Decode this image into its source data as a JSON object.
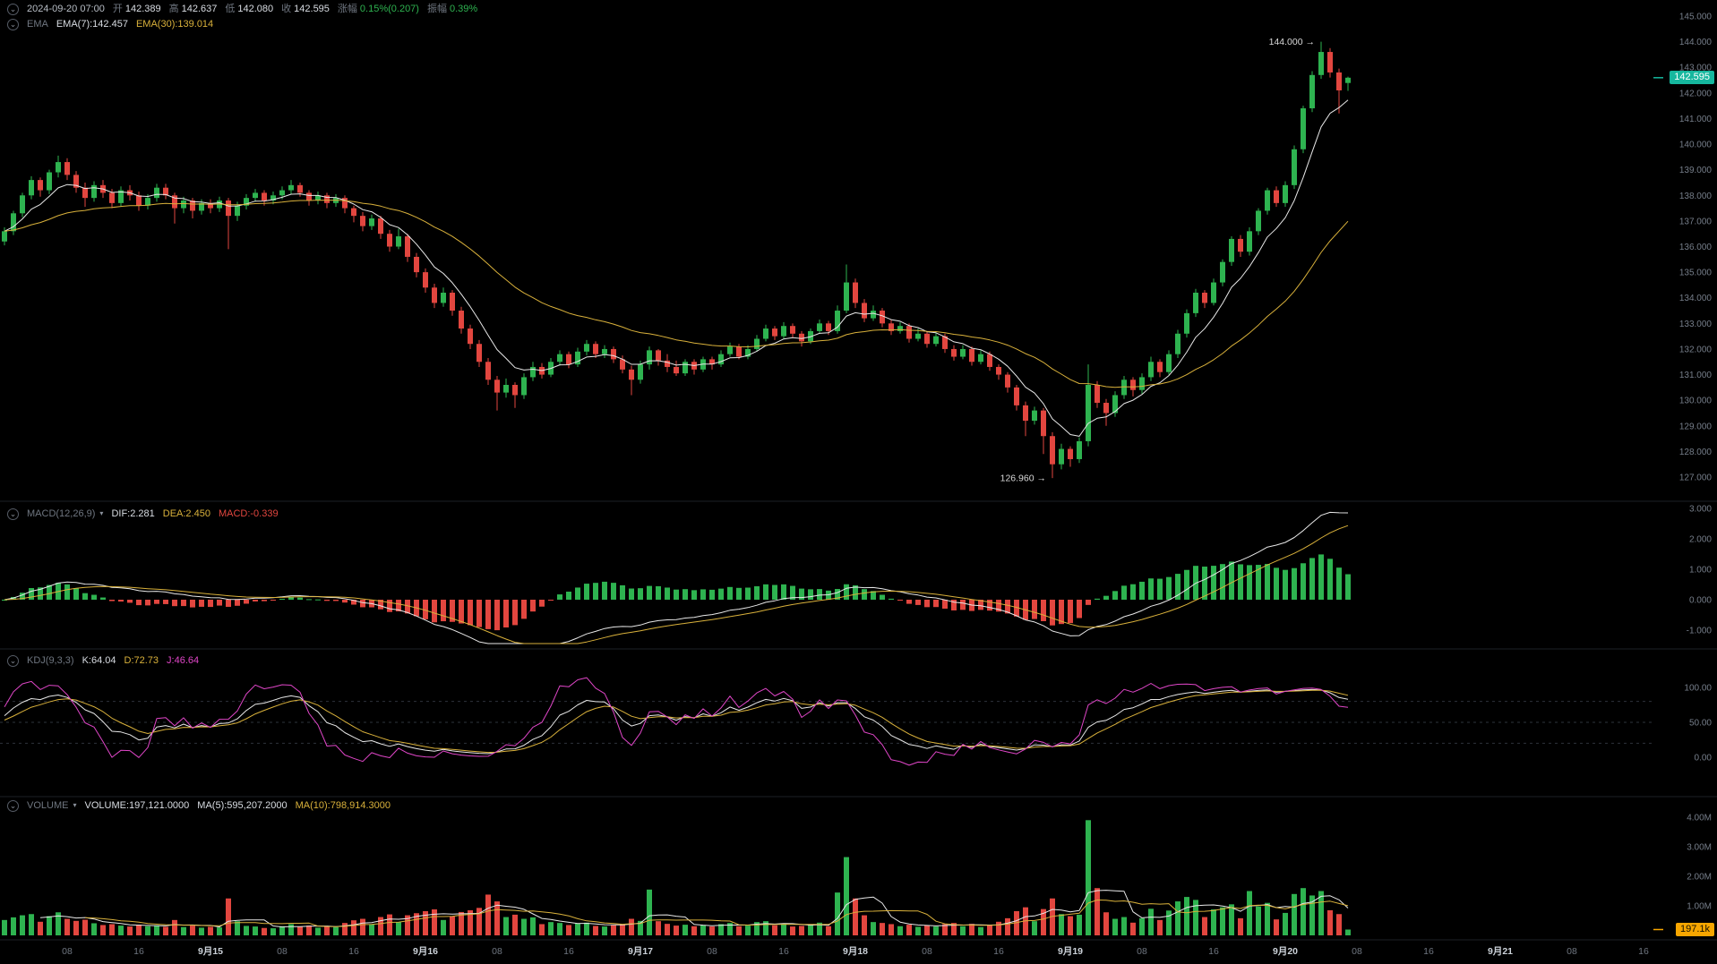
{
  "header": {
    "datetime": "2024-09-20 07:00",
    "open_label": "开",
    "open_value": "142.389",
    "high_label": "高",
    "high_value": "142.637",
    "low_label": "低",
    "low_value": "142.080",
    "close_label": "收",
    "close_value": "142.595",
    "change_label": "涨幅",
    "change_value": "0.15%(0.207)",
    "amp_label": "振幅",
    "amp_value": "0.39%"
  },
  "ema_legend": {
    "name": "EMA",
    "ema7": "EMA(7):142.457",
    "ema30": "EMA(30):139.014"
  },
  "panels": {
    "macd": {
      "name": "MACD(12,26,9)",
      "dif": "DIF:2.281",
      "dea": "DEA:2.450",
      "macd": "MACD:-0.339",
      "ticks": [
        "3.000",
        "2.000",
        "1.000",
        "0.000",
        "-1.000"
      ],
      "tick_values": [
        3,
        2,
        1,
        0,
        -1
      ]
    },
    "kdj": {
      "name": "KDJ(9,3,3)",
      "k": "K:64.04",
      "d": "D:72.73",
      "j": "J:46.64",
      "ticks": [
        "100.00",
        "50.00",
        "0.00"
      ],
      "tick_values": [
        100,
        50,
        0
      ]
    },
    "volume": {
      "name": "VOLUME",
      "volume": "VOLUME:197,121.0000",
      "ma5": "MA(5):595,207.2000",
      "ma10": "MA(10):798,914.3000",
      "ticks": [
        "4.00M",
        "3.00M",
        "2.00M",
        "1.00M"
      ],
      "tick_values": [
        4,
        3,
        2,
        1
      ]
    }
  },
  "badges": {
    "last_price": "142.595",
    "last_volume": "197.1k"
  },
  "annotations": [
    {
      "text": "144.000 →",
      "price": 144.0,
      "candle": 147
    },
    {
      "text": "126.960 →",
      "price": 126.96,
      "candle": 117
    }
  ],
  "price_axis": {
    "max": 145,
    "min": 127,
    "step": 1,
    "labels": [
      "145.000",
      "144.000",
      "143.000",
      "142.000",
      "141.000",
      "140.000",
      "139.000",
      "138.000",
      "137.000",
      "136.000",
      "135.000",
      "134.000",
      "133.000",
      "132.000",
      "131.000",
      "130.000",
      "129.000",
      "128.000",
      "127.000"
    ]
  },
  "time_axis": [
    {
      "t": "08",
      "i": 7
    },
    {
      "t": "16",
      "i": 15
    },
    {
      "t": "9月15",
      "i": 23,
      "major": true
    },
    {
      "t": "08",
      "i": 31
    },
    {
      "t": "16",
      "i": 39
    },
    {
      "t": "9月16",
      "i": 47,
      "major": true
    },
    {
      "t": "08",
      "i": 55
    },
    {
      "t": "16",
      "i": 63
    },
    {
      "t": "9月17",
      "i": 71,
      "major": true
    },
    {
      "t": "08",
      "i": 79
    },
    {
      "t": "16",
      "i": 87
    },
    {
      "t": "9月18",
      "i": 95,
      "major": true
    },
    {
      "t": "08",
      "i": 103
    },
    {
      "t": "16",
      "i": 111
    },
    {
      "t": "9月19",
      "i": 119,
      "major": true
    },
    {
      "t": "08",
      "i": 127
    },
    {
      "t": "16",
      "i": 135
    },
    {
      "t": "9月20",
      "i": 143,
      "major": true
    },
    {
      "t": "08",
      "i": 151
    },
    {
      "t": "16",
      "i": 159
    },
    {
      "t": "9月21",
      "i": 167,
      "major": true
    },
    {
      "t": "08",
      "i": 175
    },
    {
      "t": "16",
      "i": 183
    }
  ],
  "colors": {
    "up": "#2eb350",
    "down": "#e2463f",
    "teal": "#16b79e",
    "yellow": "#d9b13b",
    "magenta": "#e046c8",
    "white_line": "#e8e8e8",
    "orange": "#f7a600"
  },
  "chart_data": {
    "type": "candlestick",
    "interval": "1h",
    "last_bar_time": "2024-09-20 07:00",
    "price_range": [
      127,
      145
    ],
    "indicators": {
      "ema": [
        7,
        30
      ],
      "macd": [
        12,
        26,
        9
      ],
      "kdj": [
        9,
        3,
        3
      ],
      "volume_ma": [
        5,
        10
      ]
    },
    "high_annotation": 144.0,
    "low_annotation": 126.96,
    "candles": [
      [
        136.2,
        136.75,
        136.05,
        136.6,
        520000
      ],
      [
        136.6,
        137.4,
        136.45,
        137.3,
        610000
      ],
      [
        137.3,
        138.1,
        137.15,
        138.0,
        680000
      ],
      [
        138.0,
        138.75,
        137.85,
        138.6,
        720000
      ],
      [
        138.6,
        138.7,
        137.95,
        138.2,
        460000
      ],
      [
        138.2,
        139.0,
        138.05,
        138.9,
        650000
      ],
      [
        138.9,
        139.55,
        138.7,
        139.3,
        780000
      ],
      [
        139.3,
        139.45,
        138.6,
        138.8,
        560000
      ],
      [
        138.8,
        138.95,
        138.1,
        138.3,
        490000
      ],
      [
        138.3,
        138.5,
        137.55,
        137.9,
        530000
      ],
      [
        137.9,
        138.55,
        137.75,
        138.4,
        410000
      ],
      [
        138.4,
        138.6,
        137.9,
        138.1,
        350000
      ],
      [
        138.1,
        138.25,
        137.5,
        137.7,
        380000
      ],
      [
        137.7,
        138.35,
        137.55,
        138.2,
        330000
      ],
      [
        138.2,
        138.4,
        137.8,
        138.0,
        300000
      ],
      [
        138.0,
        138.15,
        137.4,
        137.6,
        360000
      ],
      [
        137.6,
        138.05,
        137.45,
        137.9,
        310000
      ],
      [
        137.9,
        138.45,
        137.75,
        138.3,
        340000
      ],
      [
        138.3,
        138.45,
        137.85,
        138.0,
        290000
      ],
      [
        138.0,
        138.1,
        136.9,
        137.5,
        520000
      ],
      [
        137.5,
        137.95,
        137.3,
        137.8,
        280000
      ],
      [
        137.8,
        137.9,
        137.1,
        137.4,
        330000
      ],
      [
        137.4,
        137.85,
        137.25,
        137.7,
        260000
      ],
      [
        137.7,
        137.85,
        137.3,
        137.5,
        290000
      ],
      [
        137.5,
        137.95,
        137.35,
        137.8,
        270000
      ],
      [
        137.8,
        137.9,
        135.9,
        137.2,
        1250000
      ],
      [
        137.2,
        137.75,
        137.0,
        137.6,
        480000
      ],
      [
        137.6,
        138.05,
        137.45,
        137.9,
        320000
      ],
      [
        137.9,
        138.25,
        137.75,
        138.1,
        300000
      ],
      [
        138.1,
        138.2,
        137.6,
        137.8,
        250000
      ],
      [
        137.8,
        138.15,
        137.65,
        138.0,
        240000
      ],
      [
        138.0,
        138.35,
        137.85,
        138.2,
        310000
      ],
      [
        138.2,
        138.6,
        138.05,
        138.4,
        380000
      ],
      [
        138.4,
        138.5,
        137.95,
        138.1,
        290000
      ],
      [
        138.1,
        138.2,
        137.6,
        137.8,
        330000
      ],
      [
        137.8,
        138.15,
        137.65,
        138.0,
        260000
      ],
      [
        138.0,
        138.1,
        137.5,
        137.7,
        310000
      ],
      [
        137.7,
        138.05,
        137.55,
        137.9,
        280000
      ],
      [
        137.9,
        138.0,
        137.3,
        137.5,
        420000
      ],
      [
        137.5,
        137.6,
        136.95,
        137.2,
        510000
      ],
      [
        137.2,
        137.35,
        136.6,
        136.8,
        560000
      ],
      [
        136.8,
        137.25,
        136.65,
        137.1,
        380000
      ],
      [
        137.1,
        137.2,
        136.3,
        136.5,
        620000
      ],
      [
        136.5,
        136.65,
        135.8,
        136.0,
        710000
      ],
      [
        136.0,
        136.7,
        135.9,
        136.4,
        450000
      ],
      [
        136.4,
        136.5,
        135.4,
        135.6,
        680000
      ],
      [
        135.6,
        135.75,
        134.8,
        135.0,
        750000
      ],
      [
        135.0,
        135.15,
        134.2,
        134.4,
        820000
      ],
      [
        134.4,
        134.55,
        133.6,
        133.8,
        880000
      ],
      [
        133.8,
        134.4,
        133.65,
        134.2,
        520000
      ],
      [
        134.2,
        134.3,
        133.3,
        133.5,
        640000
      ],
      [
        133.5,
        133.65,
        132.6,
        132.8,
        790000
      ],
      [
        132.8,
        132.95,
        132.0,
        132.2,
        850000
      ],
      [
        132.2,
        132.35,
        131.3,
        131.5,
        930000
      ],
      [
        131.5,
        131.65,
        130.6,
        130.8,
        1380000
      ],
      [
        130.8,
        130.95,
        129.6,
        130.3,
        1150000
      ],
      [
        130.3,
        130.85,
        130.1,
        130.6,
        620000
      ],
      [
        130.6,
        130.7,
        129.7,
        130.2,
        700000
      ],
      [
        130.2,
        131.05,
        130.05,
        130.9,
        560000
      ],
      [
        130.9,
        131.5,
        130.75,
        131.3,
        610000
      ],
      [
        131.3,
        131.45,
        130.85,
        131.0,
        380000
      ],
      [
        131.0,
        131.65,
        130.9,
        131.5,
        450000
      ],
      [
        131.5,
        131.95,
        131.35,
        131.8,
        420000
      ],
      [
        131.8,
        131.9,
        131.25,
        131.4,
        350000
      ],
      [
        131.4,
        132.05,
        131.3,
        131.9,
        400000
      ],
      [
        131.9,
        132.35,
        131.75,
        132.2,
        430000
      ],
      [
        132.2,
        132.3,
        131.65,
        131.8,
        320000
      ],
      [
        131.8,
        132.15,
        131.65,
        132.0,
        300000
      ],
      [
        132.0,
        132.1,
        131.45,
        131.6,
        340000
      ],
      [
        131.6,
        131.75,
        131.05,
        131.2,
        380000
      ],
      [
        131.2,
        131.35,
        130.2,
        130.8,
        560000
      ],
      [
        130.8,
        131.55,
        130.65,
        131.4,
        490000
      ],
      [
        131.4,
        132.1,
        131.2,
        131.95,
        1550000
      ],
      [
        131.95,
        132.0,
        131.35,
        131.55,
        480000
      ],
      [
        131.55,
        131.8,
        131.1,
        131.3,
        390000
      ],
      [
        131.3,
        131.55,
        130.95,
        131.05,
        330000
      ],
      [
        131.05,
        131.6,
        130.95,
        131.5,
        360000
      ],
      [
        131.5,
        131.6,
        131.0,
        131.2,
        310000
      ],
      [
        131.2,
        131.7,
        131.1,
        131.6,
        340000
      ],
      [
        131.6,
        131.7,
        131.2,
        131.4,
        300000
      ],
      [
        131.4,
        131.95,
        131.3,
        131.8,
        380000
      ],
      [
        131.8,
        132.25,
        131.7,
        132.1,
        420000
      ],
      [
        132.1,
        132.2,
        131.6,
        131.7,
        310000
      ],
      [
        131.7,
        132.15,
        131.6,
        132.0,
        330000
      ],
      [
        132.0,
        132.55,
        131.9,
        132.4,
        450000
      ],
      [
        132.4,
        132.95,
        132.3,
        132.8,
        480000
      ],
      [
        132.8,
        132.9,
        132.35,
        132.5,
        340000
      ],
      [
        132.5,
        133.05,
        132.4,
        132.9,
        410000
      ],
      [
        132.9,
        133.0,
        132.45,
        132.6,
        300000
      ],
      [
        132.6,
        132.7,
        132.1,
        132.3,
        320000
      ],
      [
        132.3,
        132.8,
        132.2,
        132.7,
        350000
      ],
      [
        132.7,
        133.15,
        132.6,
        133.0,
        430000
      ],
      [
        133.0,
        133.1,
        132.55,
        132.7,
        310000
      ],
      [
        132.7,
        133.7,
        132.6,
        133.5,
        1450000
      ],
      [
        133.5,
        135.3,
        133.4,
        134.6,
        2650000
      ],
      [
        134.6,
        134.75,
        133.6,
        133.8,
        1250000
      ],
      [
        133.8,
        133.95,
        133.05,
        133.2,
        680000
      ],
      [
        133.2,
        133.7,
        133.1,
        133.5,
        450000
      ],
      [
        133.5,
        133.6,
        132.85,
        133.0,
        420000
      ],
      [
        133.0,
        133.15,
        132.55,
        132.7,
        380000
      ],
      [
        132.7,
        133.05,
        132.6,
        132.9,
        310000
      ],
      [
        132.9,
        133.0,
        132.25,
        132.4,
        360000
      ],
      [
        132.4,
        132.8,
        132.3,
        132.6,
        290000
      ],
      [
        132.6,
        132.7,
        132.05,
        132.2,
        340000
      ],
      [
        132.2,
        132.65,
        132.1,
        132.5,
        300000
      ],
      [
        132.5,
        132.6,
        131.85,
        132.0,
        380000
      ],
      [
        132.0,
        132.15,
        131.55,
        131.7,
        420000
      ],
      [
        131.7,
        132.15,
        131.6,
        132.0,
        310000
      ],
      [
        132.0,
        132.1,
        131.35,
        131.5,
        390000
      ],
      [
        131.5,
        131.95,
        131.4,
        131.8,
        280000
      ],
      [
        131.8,
        131.9,
        131.15,
        131.3,
        350000
      ],
      [
        131.3,
        131.4,
        130.8,
        131.0,
        460000
      ],
      [
        131.0,
        131.1,
        130.3,
        130.5,
        580000
      ],
      [
        130.5,
        130.6,
        129.6,
        129.8,
        820000
      ],
      [
        129.8,
        129.95,
        128.6,
        129.2,
        950000
      ],
      [
        129.2,
        129.75,
        129.05,
        129.6,
        480000
      ],
      [
        129.6,
        129.7,
        127.9,
        128.6,
        890000
      ],
      [
        128.6,
        128.75,
        126.96,
        127.5,
        1250000
      ],
      [
        127.5,
        128.3,
        127.3,
        128.1,
        720000
      ],
      [
        128.1,
        128.2,
        127.4,
        127.7,
        650000
      ],
      [
        127.7,
        128.55,
        127.55,
        128.4,
        700000
      ],
      [
        128.4,
        131.4,
        128.2,
        130.6,
        3900000
      ],
      [
        130.6,
        130.75,
        129.7,
        129.9,
        1600000
      ],
      [
        129.9,
        130.05,
        129.0,
        129.5,
        780000
      ],
      [
        129.5,
        130.35,
        129.35,
        130.2,
        560000
      ],
      [
        130.2,
        130.95,
        130.05,
        130.8,
        620000
      ],
      [
        130.8,
        130.9,
        130.15,
        130.4,
        430000
      ],
      [
        130.4,
        131.05,
        130.25,
        130.9,
        580000
      ],
      [
        130.9,
        131.7,
        130.75,
        131.5,
        900000
      ],
      [
        131.5,
        131.6,
        130.9,
        131.1,
        520000
      ],
      [
        131.1,
        131.95,
        131.0,
        131.8,
        840000
      ],
      [
        131.8,
        132.75,
        131.65,
        132.6,
        1150000
      ],
      [
        132.6,
        133.55,
        132.45,
        133.4,
        1300000
      ],
      [
        133.4,
        134.35,
        133.25,
        134.2,
        1200000
      ],
      [
        134.2,
        134.3,
        133.6,
        133.8,
        620000
      ],
      [
        133.8,
        134.75,
        133.7,
        134.6,
        880000
      ],
      [
        134.6,
        135.5,
        134.45,
        135.4,
        950000
      ],
      [
        135.4,
        136.4,
        135.25,
        136.3,
        1050000
      ],
      [
        136.3,
        136.45,
        135.6,
        135.8,
        580000
      ],
      [
        135.8,
        136.75,
        135.65,
        136.6,
        1500000
      ],
      [
        136.6,
        137.5,
        136.45,
        137.4,
        980000
      ],
      [
        137.4,
        138.3,
        137.25,
        138.2,
        1100000
      ],
      [
        138.2,
        138.35,
        137.55,
        137.7,
        540000
      ],
      [
        137.7,
        138.55,
        137.55,
        138.4,
        760000
      ],
      [
        138.4,
        139.95,
        138.25,
        139.8,
        1400000
      ],
      [
        139.8,
        141.5,
        139.65,
        141.4,
        1600000
      ],
      [
        141.4,
        142.85,
        141.25,
        142.7,
        1350000
      ],
      [
        142.7,
        144.0,
        142.55,
        143.6,
        1500000
      ],
      [
        143.6,
        143.75,
        142.6,
        142.8,
        850000
      ],
      [
        142.8,
        142.95,
        141.2,
        142.1,
        720000
      ],
      [
        142.389,
        142.637,
        142.08,
        142.595,
        197121
      ]
    ]
  }
}
